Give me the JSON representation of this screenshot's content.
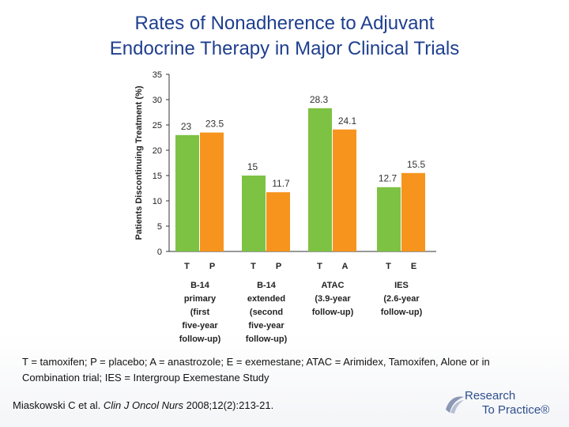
{
  "title_line1": "Rates of Nonadherence to Adjuvant",
  "title_line2": "Endocrine Therapy in Major Clinical Trials",
  "chart_data": {
    "type": "bar",
    "ylabel": "Patients Discontinuing Treatment (%)",
    "ylim": [
      0,
      35
    ],
    "yticks": [
      0,
      5,
      10,
      15,
      20,
      25,
      30,
      35
    ],
    "grid": false,
    "colors": {
      "first": "#7dc242",
      "second": "#f7941d"
    },
    "groups": [
      {
        "label_lines": [
          "B-14",
          "primary",
          "(first",
          "five-year",
          "follow-up)"
        ],
        "bars": [
          {
            "letter": "T",
            "value": 23,
            "label": "23"
          },
          {
            "letter": "P",
            "value": 23.5,
            "label": "23.5"
          }
        ]
      },
      {
        "label_lines": [
          "B-14",
          "extended",
          "(second",
          "five-year",
          "follow-up)"
        ],
        "bars": [
          {
            "letter": "T",
            "value": 15,
            "label": "15"
          },
          {
            "letter": "P",
            "value": 11.7,
            "label": "11.7"
          }
        ]
      },
      {
        "label_lines": [
          "ATAC",
          "(3.9-year",
          "follow-up)"
        ],
        "bars": [
          {
            "letter": "T",
            "value": 28.3,
            "label": "28.3"
          },
          {
            "letter": "A",
            "value": 24.1,
            "label": "24.1"
          }
        ]
      },
      {
        "label_lines": [
          "IES",
          "(2.6-year",
          "follow-up)"
        ],
        "bars": [
          {
            "letter": "T",
            "value": 12.7,
            "label": "12.7"
          },
          {
            "letter": "E",
            "value": 15.5,
            "label": "15.5"
          }
        ]
      }
    ]
  },
  "footnote": "T = tamoxifen; P = placebo; A = anastrozole; E = exemestane; ATAC = Arimidex, Tamoxifen, Alone or in Combination trial; IES = Intergroup Exemestane Study",
  "citation": {
    "authors": "Miaskowski C et al. ",
    "journal": "Clin J Oncol Nurs",
    "details": " 2008;12(2):213-21."
  },
  "logo": {
    "line1": "Research",
    "line2": "To Practice®"
  }
}
